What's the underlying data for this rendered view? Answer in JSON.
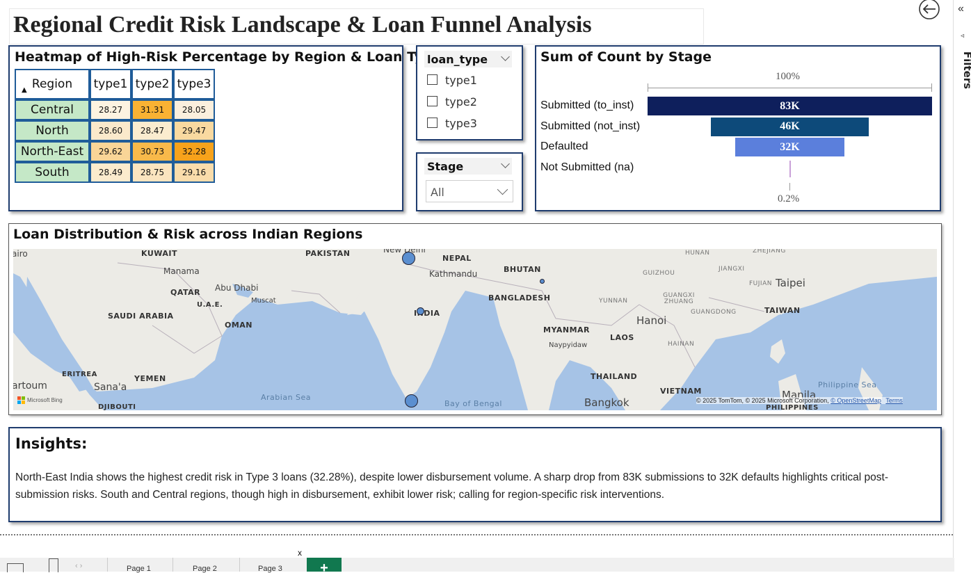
{
  "title": "Regional Credit Risk Landscape & Loan Funnel Analysis",
  "heatmap": {
    "title": "Heatmap of High-Risk Percentage by Region & Loan Type",
    "row_header": "Region",
    "columns": [
      "type1",
      "type2",
      "type3"
    ],
    "rows": [
      {
        "region": "Central",
        "values": [
          "28.27",
          "31.31",
          "28.05"
        ],
        "colors": [
          "#fdf3e1",
          "#f9b233",
          "#fbefdd"
        ]
      },
      {
        "region": "North",
        "values": [
          "28.60",
          "28.47",
          "29.47"
        ],
        "colors": [
          "#fbe9cb",
          "#fbeccf",
          "#f9d9a0"
        ]
      },
      {
        "region": "North-East",
        "values": [
          "29.62",
          "30.73",
          "32.28"
        ],
        "colors": [
          "#f9d597",
          "#f8b94a",
          "#f7a21b"
        ]
      },
      {
        "region": "South",
        "values": [
          "28.49",
          "28.75",
          "29.16"
        ],
        "colors": [
          "#fbebcd",
          "#fbe4bf",
          "#f9dcab"
        ]
      }
    ]
  },
  "loan_slicer": {
    "title": "loan_type",
    "options": [
      "type1",
      "type2",
      "type3"
    ]
  },
  "stage_slicer": {
    "title": "Stage",
    "value": "All"
  },
  "funnel": {
    "title": "Sum of Count by Stage",
    "top_label": "100%",
    "bottom_label": "0.2%",
    "stages": [
      {
        "label": "Submitted (to_inst)",
        "value_label": "83K",
        "value": 83,
        "color": "#0e1f5c"
      },
      {
        "label": "Submitted (not_inst)",
        "value_label": "46K",
        "value": 46,
        "color": "#0d4a7a"
      },
      {
        "label": "Defaulted",
        "value_label": "32K",
        "value": 32,
        "color": "#5b7fdc"
      },
      {
        "label": "Not Submitted (na)",
        "value_label": "",
        "value": 0.2,
        "color": "#c9a0d8"
      }
    ]
  },
  "map": {
    "title": "Loan Distribution & Risk across Indian Regions",
    "attribution": "© 2025 TomTom, © 2025 Microsoft Corporation,",
    "osm": "© OpenStreetMap",
    "terms": "Terms",
    "brand": "Microsoft Bing",
    "countries": [
      "KUWAIT",
      "PAKISTAN",
      "NEPAL",
      "BHUTAN",
      "QATAR",
      "U.A.E.",
      "BANGLADESH",
      "SAUDI ARABIA",
      "INDIA",
      "OMAN",
      "MYANMAR",
      "LAOS",
      "ERITREA",
      "YEMEN",
      "THAILAND",
      "VIETNAM",
      "TAIWAN",
      "PHILIPPINES",
      "DJIBOUTI"
    ],
    "cities": [
      "Manama",
      "Abu Dhabi",
      "Muscat",
      "Kathmandu",
      "Naypyidaw",
      "Hanoi",
      "Bangkok",
      "Taipei",
      "Manila",
      "Sana'a",
      "New Delhi",
      "artoum",
      "airo"
    ],
    "regions": [
      "HUNAN",
      "ZHEJIANG",
      "GUIZHOU",
      "JIANGXI",
      "FUJIAN",
      "GUANGXI ZHUANG",
      "YUNNAN",
      "GUANGDONG",
      "HAINAN"
    ],
    "seas": [
      "Arabian Sea",
      "Bay of Bengal",
      "Philippine Sea"
    ]
  },
  "insights": {
    "title": "Insights:",
    "text": "North-East India shows the highest credit risk in Type 3 loans (32.28%), despite lower disbursement volume. A sharp drop from 83K submissions to 32K defaults highlights critical post-submission risks. South and Central regions, though high in disbursement, exhibit lower risk; calling for region-specific risk interventions."
  },
  "filters_label": "Filters",
  "pages": [
    "Page 1",
    "Page 2",
    "Page 3"
  ],
  "add_page": "+"
}
